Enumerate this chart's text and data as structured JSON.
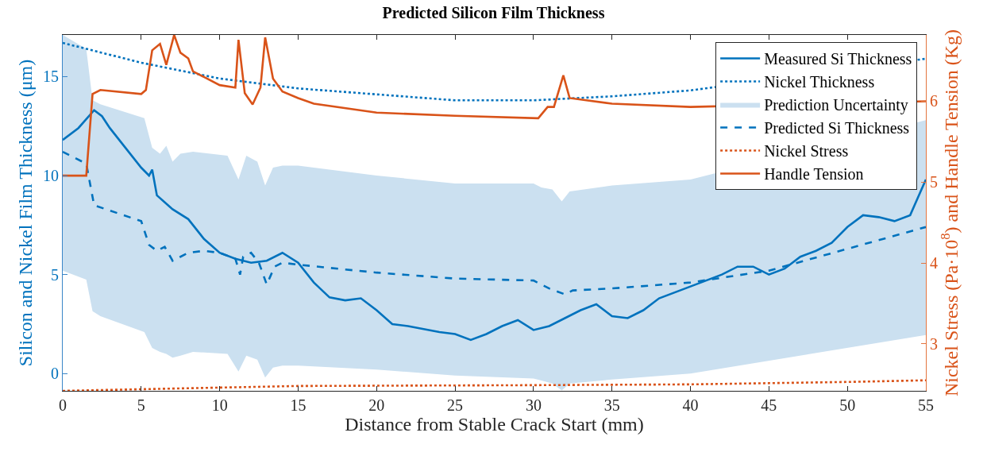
{
  "chart_data": {
    "type": "line",
    "title": "Predicted Silicon Film Thickness",
    "xlabel": "Distance from Stable Crack Start (mm)",
    "ylabel": "Silicon and Nickel Film Thickness (μm)",
    "y2label": "Nickel Stress (Pa·10$^{8}$) and Handle Tension (Kg)",
    "xlim": [
      0,
      55
    ],
    "xticks": [
      0,
      5,
      10,
      15,
      20,
      25,
      30,
      35,
      40,
      45,
      50,
      55
    ],
    "ylim": [
      -0.87,
      17.1
    ],
    "yticks": [
      0,
      5,
      10,
      15
    ],
    "y2lim": [
      2.42,
      6.82
    ],
    "y2ticks": [
      3,
      4,
      5,
      6
    ],
    "legend": "top right",
    "marker": "none",
    "series": [
      {
        "name": "Measured Si Thickness",
        "type": "line",
        "line_style": "solid",
        "color": "#0072bd",
        "x": [
          0,
          1,
          2,
          2.5,
          3,
          4,
          5,
          5.5,
          5.7,
          6,
          7,
          8,
          9,
          10,
          11,
          12,
          13,
          14,
          15,
          16,
          17,
          18,
          19,
          20,
          21,
          22,
          24,
          25,
          26,
          27,
          28,
          29,
          30,
          31,
          32,
          33,
          34,
          35,
          36,
          37,
          38,
          40,
          42,
          43,
          44,
          45,
          46,
          47,
          48,
          49,
          50,
          51,
          52,
          53,
          54,
          55
        ],
        "values": [
          11.8,
          12.4,
          13.3,
          13.0,
          12.4,
          11.4,
          10.4,
          10.0,
          10.3,
          9.0,
          8.3,
          7.8,
          6.8,
          6.1,
          5.8,
          5.6,
          5.7,
          6.1,
          5.6,
          4.6,
          3.85,
          3.7,
          3.8,
          3.2,
          2.5,
          2.4,
          2.1,
          2.0,
          1.7,
          2.0,
          2.4,
          2.7,
          2.2,
          2.4,
          2.8,
          3.2,
          3.5,
          2.9,
          2.8,
          3.2,
          3.8,
          4.4,
          5.0,
          5.4,
          5.4,
          5.0,
          5.3,
          5.9,
          6.2,
          6.6,
          7.4,
          8.0,
          7.9,
          7.7,
          8.0,
          9.8
        ]
      },
      {
        "name": "Nickel Thickness",
        "type": "line",
        "line_style": "dotted",
        "color": "#0072bd",
        "x": [
          0,
          2.5,
          5,
          7.5,
          10,
          15,
          20,
          25,
          30,
          35,
          40,
          45,
          50,
          55
        ],
        "values": [
          16.7,
          16.2,
          15.7,
          15.3,
          14.9,
          14.4,
          14.1,
          13.8,
          13.8,
          14.0,
          14.3,
          null,
          null,
          15.9
        ]
      },
      {
        "name": "Prediction Uncertainty",
        "type": "area",
        "color": "#cbe0f0",
        "values": [
          null,
          null,
          null,
          null,
          null,
          null,
          null,
          null,
          null,
          null,
          null,
          null,
          null,
          null,
          null,
          null,
          null,
          null,
          null,
          null,
          null,
          null,
          null,
          null,
          null,
          null,
          null,
          null,
          null,
          null,
          null
        ],
        "x": [
          0,
          1.5,
          1.9,
          2.4,
          5.2,
          5.7,
          6.2,
          6.6,
          7,
          7.5,
          8.3,
          10.5,
          11.2,
          11.7,
          12.4,
          12.9,
          13.4,
          14,
          15,
          20,
          25,
          30,
          30.5,
          31.2,
          31.8,
          32.3,
          35,
          40,
          45,
          50,
          55
        ],
        "upper": [
          17.1,
          16.4,
          13.8,
          13.6,
          12.9,
          11.4,
          11.1,
          11.5,
          10.7,
          11.1,
          11.2,
          11.0,
          9.8,
          11.0,
          10.7,
          9.5,
          10.4,
          10.5,
          10.5,
          10.0,
          9.6,
          9.6,
          9.4,
          9.3,
          8.7,
          9.2,
          9.5,
          9.8,
          null,
          null,
          12.8
        ],
        "lower": [
          5.2,
          4.75,
          3.15,
          2.9,
          2.1,
          1.3,
          1.1,
          1.0,
          0.8,
          0.9,
          1.1,
          1.0,
          0.1,
          0.9,
          0.7,
          -0.2,
          0.3,
          0.4,
          0.4,
          0.2,
          -0.1,
          -0.25,
          -0.35,
          -0.5,
          -0.85,
          -0.5,
          -0.3,
          0.0,
          null,
          null,
          1.95
        ]
      },
      {
        "name": "Predicted Si Thickness",
        "type": "line",
        "line_style": "dashed",
        "color": "#0072bd",
        "x": [
          0,
          1.5,
          2,
          5,
          5.5,
          6,
          6.5,
          7,
          8,
          9,
          10,
          11,
          11.3,
          11.5,
          12,
          12.5,
          13,
          13.5,
          14,
          15,
          20,
          25,
          30,
          31,
          32,
          32.5,
          35,
          40,
          45,
          50,
          55
        ],
        "values": [
          11.2,
          10.6,
          8.5,
          7.7,
          6.5,
          6.2,
          6.4,
          5.7,
          6.1,
          6.2,
          6.1,
          5.8,
          5.0,
          5.9,
          6.1,
          5.6,
          4.5,
          5.4,
          5.6,
          5.5,
          5.1,
          4.8,
          4.7,
          4.3,
          4.0,
          4.2,
          4.3,
          4.6,
          5.2,
          6.3,
          7.4
        ]
      },
      {
        "name": "Nickel Stress",
        "type": "line",
        "line_style": "dotted",
        "axis": "y2",
        "color": "#d95319",
        "x": [
          0,
          15,
          30,
          40,
          50,
          55
        ],
        "values": [
          2.42,
          2.48,
          2.49,
          2.5,
          2.53,
          2.55
        ]
      },
      {
        "name": "Handle Tension",
        "type": "line",
        "line_style": "solid",
        "axis": "y2",
        "color": "#d95319",
        "x": [
          0,
          1.5,
          1.9,
          2.4,
          5,
          5.3,
          5.7,
          6.2,
          6.6,
          7.1,
          7.5,
          8,
          8.3,
          9,
          10,
          11,
          11.2,
          11.6,
          12.1,
          12.6,
          12.9,
          13.4,
          14,
          15,
          16,
          20,
          25,
          30.3,
          30.9,
          31.3,
          31.9,
          32.3,
          35,
          40,
          55
        ],
        "values": [
          5.08,
          5.08,
          6.09,
          6.14,
          6.09,
          6.14,
          6.63,
          6.71,
          6.45,
          6.82,
          6.6,
          6.53,
          6.37,
          6.3,
          6.2,
          6.17,
          6.76,
          6.1,
          5.96,
          6.17,
          6.79,
          6.28,
          6.12,
          6.04,
          5.97,
          5.86,
          5.82,
          5.79,
          5.93,
          5.93,
          6.32,
          6.04,
          5.97,
          5.93,
          6.0
        ]
      }
    ]
  }
}
